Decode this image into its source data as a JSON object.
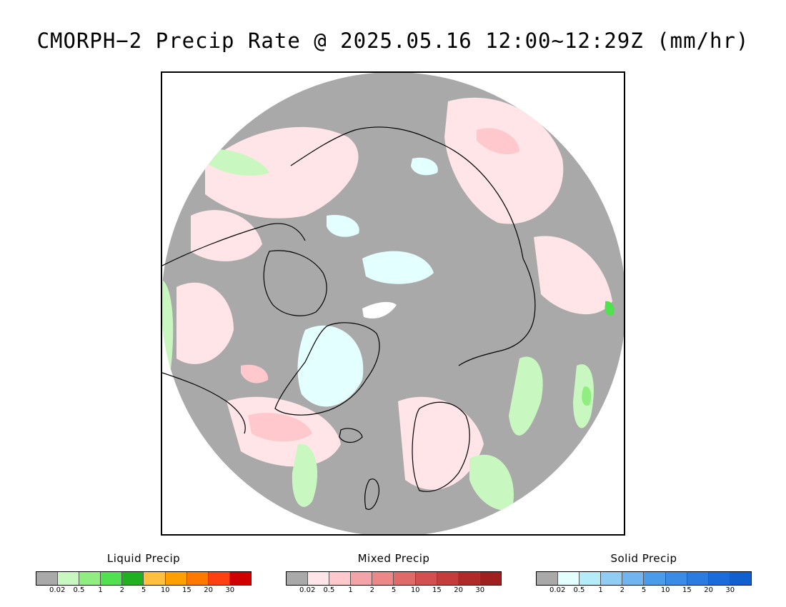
{
  "title": "CMORPH−2 Precip Rate @ 2025.05.16 12:00~12:29Z (mm/hr)",
  "map": {
    "projection": "north-polar-stereographic",
    "colors": {
      "no_precip": "#a9a9a9",
      "ocean_outside_disk": "#ffffff",
      "coastline": "#000000"
    },
    "precip_patches": [
      {
        "cat": "mixed",
        "level": 1
      },
      {
        "cat": "mixed",
        "level": 2
      },
      {
        "cat": "solid",
        "level": 1
      },
      {
        "cat": "liquid",
        "level": 1
      },
      {
        "cat": "liquid",
        "level": 2
      },
      {
        "cat": "liquid",
        "level": 3
      }
    ]
  },
  "legends": [
    {
      "title": "Liquid Precip",
      "colors": [
        "#a9a9a9",
        "#c8f8c0",
        "#90ee80",
        "#50e050",
        "#20b020",
        "#ffc040",
        "#ffa000",
        "#ff7800",
        "#ff4010",
        "#d00000"
      ],
      "ticks": [
        "0.02",
        "0.5",
        "1",
        "2",
        "5",
        "10",
        "15",
        "20",
        "30"
      ]
    },
    {
      "title": "Mixed Precip",
      "colors": [
        "#a9a9a9",
        "#ffe4e8",
        "#ffc8cc",
        "#f4a4a8",
        "#ec8888",
        "#e06a6a",
        "#d45050",
        "#c43c3c",
        "#b02a2a",
        "#a02020"
      ],
      "ticks": [
        "0.02",
        "0.5",
        "1",
        "2",
        "5",
        "10",
        "15",
        "20",
        "30"
      ]
    },
    {
      "title": "Solid Precip",
      "colors": [
        "#a9a9a9",
        "#e4ffff",
        "#b4ecf8",
        "#90ccf4",
        "#70b4f0",
        "#4a9cea",
        "#3a8ce6",
        "#2a7ce0",
        "#1a6cdc",
        "#1060d0"
      ],
      "ticks": [
        "0.02",
        "0.5",
        "1",
        "2",
        "5",
        "10",
        "15",
        "20",
        "30"
      ]
    }
  ]
}
